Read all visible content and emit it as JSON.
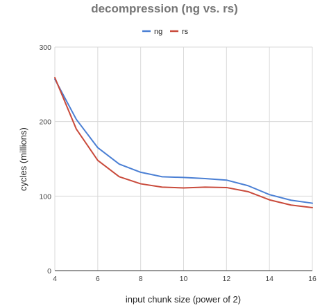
{
  "chart_data": {
    "type": "line",
    "title": "decompression (ng vs. rs)",
    "xlabel": "input chunk size (power of 2)",
    "ylabel": "cycles (millions)",
    "xlim": [
      4,
      16
    ],
    "ylim": [
      0,
      300
    ],
    "x_ticks": [
      "4",
      "6",
      "8",
      "10",
      "12",
      "14",
      "16"
    ],
    "y_ticks": [
      "0",
      "100",
      "200",
      "300"
    ],
    "grid": "horizontal and vertical",
    "legend_position": "top-center",
    "x": [
      4,
      5,
      6,
      7,
      8,
      9,
      10,
      11,
      12,
      13,
      14,
      15,
      16
    ],
    "series": [
      {
        "name": "ng",
        "color": "#4a7fd4",
        "values": [
          257,
          203,
          165,
          143,
          132,
          126,
          125,
          123.5,
          121.5,
          114,
          102,
          94.5,
          90.5
        ]
      },
      {
        "name": "rs",
        "color": "#c94a3b",
        "values": [
          259,
          190,
          148,
          126,
          116.5,
          112,
          111,
          112,
          111.5,
          106,
          95,
          88,
          84.5
        ]
      }
    ]
  }
}
